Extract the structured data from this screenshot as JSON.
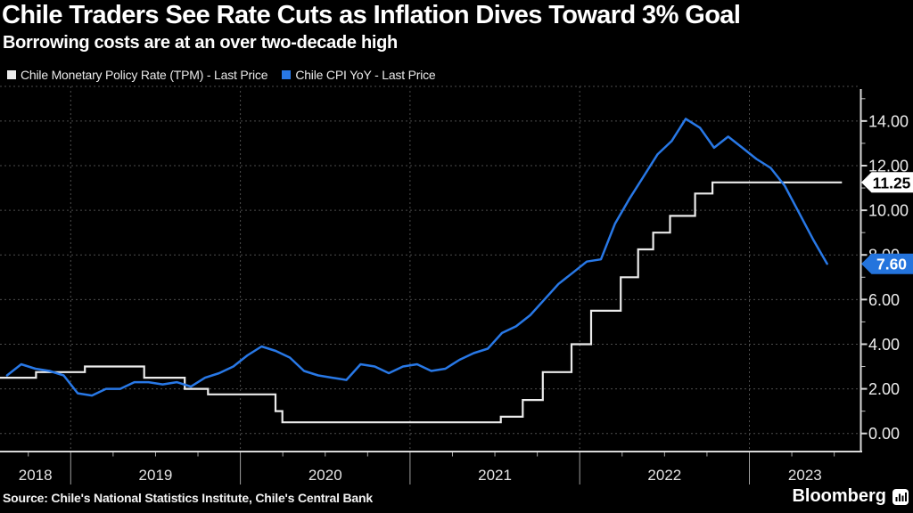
{
  "header": {
    "title": "Chile Traders See Rate Cuts as Inflation Dives Toward 3% Goal",
    "subtitle": "Borrowing costs are at an over two-decade high"
  },
  "source": "Source: Chile's National Statistics Institute, Chile's Central Bank",
  "brand": {
    "name": "Bloomberg"
  },
  "colors": {
    "background": "#000000",
    "tpm_line": "#ebebeb",
    "cpi_line": "#2878e6",
    "grid": "#4d4d4d",
    "axis": "#d9d9d9",
    "tick_label": "#ededed",
    "badge_tpm_bg": "#ffffff",
    "badge_tpm_fg": "#000000",
    "badge_cpi_bg": "#2474dd",
    "badge_cpi_fg": "#ffffff"
  },
  "chart_data": {
    "type": "line",
    "title": "Chile Traders See Rate Cuts as Inflation Dives Toward 3% Goal",
    "subtitle": "Borrowing costs are at an over two-decade high",
    "xlabel": "",
    "ylabel": "",
    "legend_position": "top-left",
    "grid": "dotted",
    "legend": [
      {
        "id": "tpm",
        "label": "Chile Monetary Policy Rate (TPM) - Last Price",
        "color": "#ebebeb"
      },
      {
        "id": "cpi",
        "label": "Chile CPI YoY - Last Price",
        "color": "#2878e6"
      }
    ],
    "x_axis": {
      "start_decimal_year": 2018.5833,
      "end_decimal_year": 2023.655,
      "year_labels": [
        "2018",
        "2019",
        "2020",
        "2021",
        "2022",
        "2023"
      ],
      "year_dividers": [
        2019,
        2020,
        2021,
        2022,
        2023
      ],
      "minor_ticks": "quarterly"
    },
    "y_axis": {
      "side": "right",
      "min": 0,
      "max": 15.4,
      "major_ticks": [
        0,
        2,
        4,
        6,
        8,
        10,
        12,
        14
      ],
      "minor_ticks": [
        1,
        3,
        5,
        7,
        9,
        11,
        13,
        15
      ],
      "tick_labels": [
        "0.00",
        "2.00",
        "4.00",
        "6.00",
        "8.00",
        "10.00",
        "12.00",
        "14.00"
      ]
    },
    "series": [
      {
        "id": "tpm",
        "name": "Chile Monetary Policy Rate (TPM)",
        "style": "step",
        "color": "#ebebeb",
        "last_price": 11.25,
        "points": [
          {
            "date": "2018-08-01",
            "rate": 2.5
          },
          {
            "date": "2018-10-18",
            "rate": 2.75
          },
          {
            "date": "2019-02-01",
            "rate": 3.0
          },
          {
            "date": "2019-06-07",
            "rate": 2.5
          },
          {
            "date": "2019-09-03",
            "rate": 2.0
          },
          {
            "date": "2019-10-23",
            "rate": 1.75
          },
          {
            "date": "2020-03-16",
            "rate": 1.0
          },
          {
            "date": "2020-03-31",
            "rate": 0.5
          },
          {
            "date": "2021-07-14",
            "rate": 0.75
          },
          {
            "date": "2021-08-31",
            "rate": 1.5
          },
          {
            "date": "2021-10-13",
            "rate": 2.75
          },
          {
            "date": "2021-12-14",
            "rate": 4.0
          },
          {
            "date": "2022-01-26",
            "rate": 5.5
          },
          {
            "date": "2022-03-29",
            "rate": 7.0
          },
          {
            "date": "2022-05-05",
            "rate": 8.25
          },
          {
            "date": "2022-06-07",
            "rate": 9.0
          },
          {
            "date": "2022-07-13",
            "rate": 9.75
          },
          {
            "date": "2022-09-06",
            "rate": 10.75
          },
          {
            "date": "2022-10-13",
            "rate": 11.25
          }
        ],
        "end_date": "2023-07-18"
      },
      {
        "id": "cpi",
        "name": "Chile CPI YoY",
        "style": "line",
        "color": "#2878e6",
        "last_price": 7.6,
        "frequency": "monthly",
        "start_year": 2018,
        "start_month": 8,
        "values": [
          2.6,
          3.1,
          2.9,
          2.8,
          2.6,
          1.8,
          1.7,
          2.0,
          2.0,
          2.3,
          2.3,
          2.2,
          2.3,
          2.1,
          2.5,
          2.7,
          3.0,
          3.5,
          3.9,
          3.7,
          3.4,
          2.8,
          2.6,
          2.5,
          2.4,
          3.1,
          3.0,
          2.7,
          3.0,
          3.1,
          2.8,
          2.9,
          3.3,
          3.6,
          3.8,
          4.5,
          4.8,
          5.3,
          6.0,
          6.7,
          7.2,
          7.7,
          7.8,
          9.4,
          10.5,
          11.5,
          12.5,
          13.1,
          14.1,
          13.7,
          12.8,
          13.3,
          12.8,
          12.3,
          11.9,
          11.1,
          9.9,
          8.7,
          7.6
        ]
      }
    ],
    "badges": [
      {
        "series": "tpm",
        "value": 11.25,
        "label": "11.25",
        "bg": "#ffffff",
        "fg": "#000000"
      },
      {
        "series": "cpi",
        "value": 7.6,
        "label": "7.60",
        "bg": "#2474dd",
        "fg": "#ffffff"
      }
    ]
  }
}
